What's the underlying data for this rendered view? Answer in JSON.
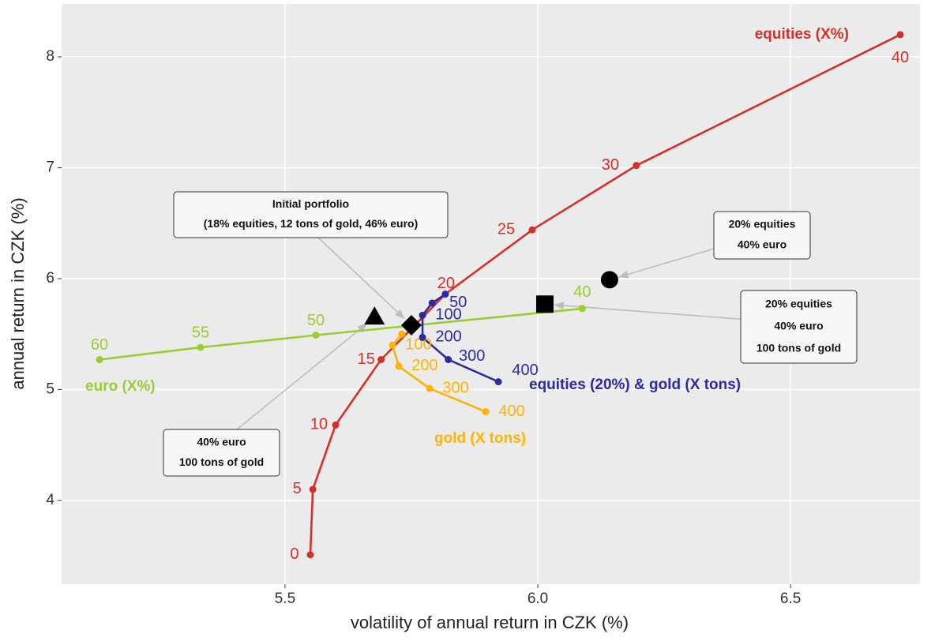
{
  "chart_data": {
    "type": "line",
    "x_label": "volatility of annual return in CZK (%)",
    "y_label": "annual return in CZK (%)",
    "xlim": [
      5.058,
      6.756
    ],
    "ylim": [
      3.245,
      8.477
    ],
    "xticks": [
      5.5,
      {
        "value": 6,
        "label": "6.0"
      },
      6.5
    ],
    "yticks": [
      4,
      5,
      6,
      7,
      8
    ],
    "grid": true,
    "series": [
      {
        "name": "equities (X%)",
        "color": "#d3302a",
        "x": [
          5.55,
          5.555,
          5.6,
          5.69,
          5.817,
          5.989,
          6.195,
          6.717
        ],
        "values": [
          3.51,
          4.1,
          4.68,
          5.27,
          5.86,
          6.44,
          7.02,
          8.2
        ],
        "point_labels": [
          0,
          5,
          10,
          15,
          20,
          25,
          30,
          40
        ]
      },
      {
        "name": "euro (X%)",
        "color": "#9acd32",
        "x": [
          5.133,
          5.333,
          5.561,
          6.088
        ],
        "values": [
          5.27,
          5.38,
          5.49,
          5.73
        ],
        "point_labels": [
          60,
          55,
          50,
          40
        ]
      },
      {
        "name": "gold (X tons)",
        "color": "#ffb400",
        "x": [
          5.731,
          5.7125,
          5.725,
          5.786,
          5.897
        ],
        "values": [
          5.5,
          5.4,
          5.21,
          5.01,
          4.8
        ],
        "point_labels": [
          null,
          100,
          200,
          300,
          400
        ]
      },
      {
        "name": "equities (20%) & gold (X tons)",
        "color": "#2b2ca0",
        "x": [
          5.817,
          5.791,
          5.772,
          5.772,
          5.823,
          5.922
        ],
        "values": [
          5.86,
          5.78,
          5.67,
          5.47,
          5.27,
          5.07
        ],
        "point_labels": [
          null,
          50,
          100,
          200,
          300,
          400
        ]
      }
    ],
    "markers": [
      {
        "shape": "triangle",
        "x": 5.677,
        "y": 5.65
      },
      {
        "shape": "diamond",
        "x": 5.75,
        "y": 5.58
      },
      {
        "shape": "square",
        "x": 6.014,
        "y": 5.77
      },
      {
        "shape": "circle",
        "x": 6.142,
        "y": 5.99
      }
    ],
    "annotations": [
      {
        "lines": [
          "Initial portfolio",
          "(18% equities, 12 tons of gold, 46% euro)"
        ]
      },
      {
        "lines": [
          "20% equities",
          "40% euro"
        ]
      },
      {
        "lines": [
          "20% equities",
          "40% euro",
          "100 tons of gold"
        ]
      },
      {
        "lines": [
          "40% euro",
          "100 tons of gold"
        ]
      }
    ]
  }
}
